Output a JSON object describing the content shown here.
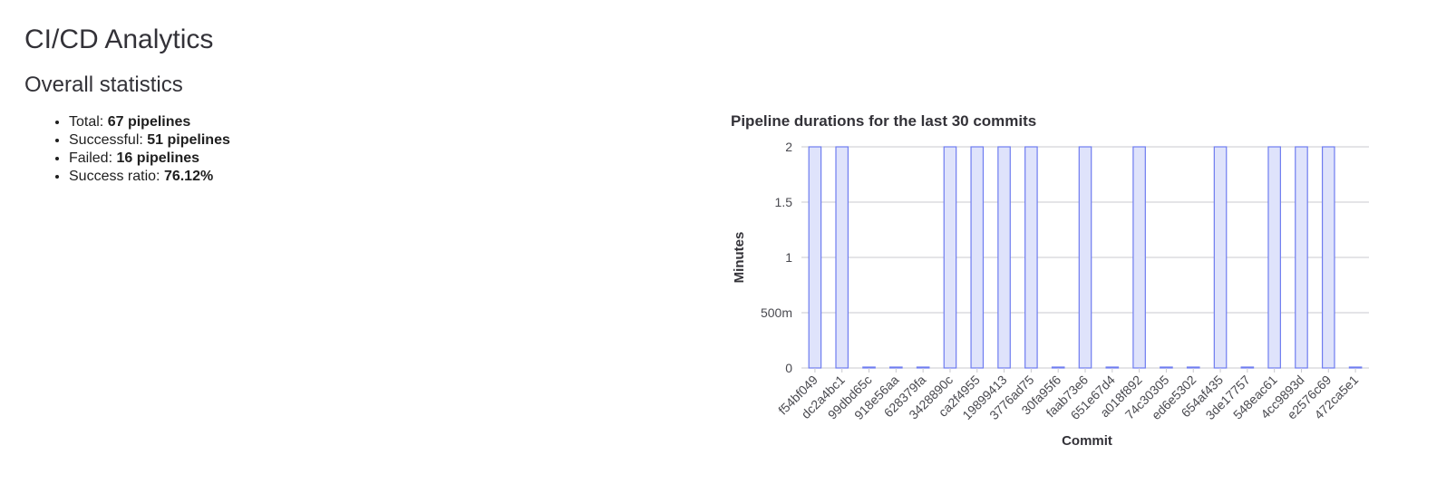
{
  "page": {
    "title": "CI/CD Analytics",
    "section_title": "Overall statistics"
  },
  "stats": [
    {
      "label": "Total:",
      "value": "67 pipelines"
    },
    {
      "label": "Successful:",
      "value": "51 pipelines"
    },
    {
      "label": "Failed:",
      "value": "16 pipelines"
    },
    {
      "label": "Success ratio:",
      "value": "76.12%"
    }
  ],
  "colors": {
    "bar_fill": "#dfe3fb",
    "bar_stroke": "#6e7cf0",
    "grid": "#c9c9cf",
    "text": "#333238"
  },
  "chart_data": {
    "type": "bar",
    "title": "Pipeline durations for the last 30 commits",
    "xlabel": "Commit",
    "ylabel": "Minutes",
    "ylim": [
      0,
      2
    ],
    "yticks": [
      0,
      0.5,
      1,
      1.5,
      2
    ],
    "ytick_labels": [
      "0",
      "500m",
      "1",
      "1.5",
      "2"
    ],
    "grid": true,
    "categories": [
      "f54bf049",
      "dc2a4bc1",
      "99dbd65c",
      "918e56aa",
      "628379fa",
      "3428890c",
      "ca2f4955",
      "19899413",
      "3776ad75",
      "30fa95f6",
      "faab73e6",
      "651e67d4",
      "a018f892",
      "74c30305",
      "ed6e5302",
      "654af435",
      "3de17757",
      "548eac61",
      "4cc9893d",
      "e2576c69",
      "472ca5e1"
    ],
    "values": [
      2,
      2,
      0,
      0,
      0,
      2,
      2,
      2,
      2,
      0,
      2,
      0,
      2,
      0,
      0,
      2,
      0,
      2,
      2,
      2,
      0
    ]
  }
}
